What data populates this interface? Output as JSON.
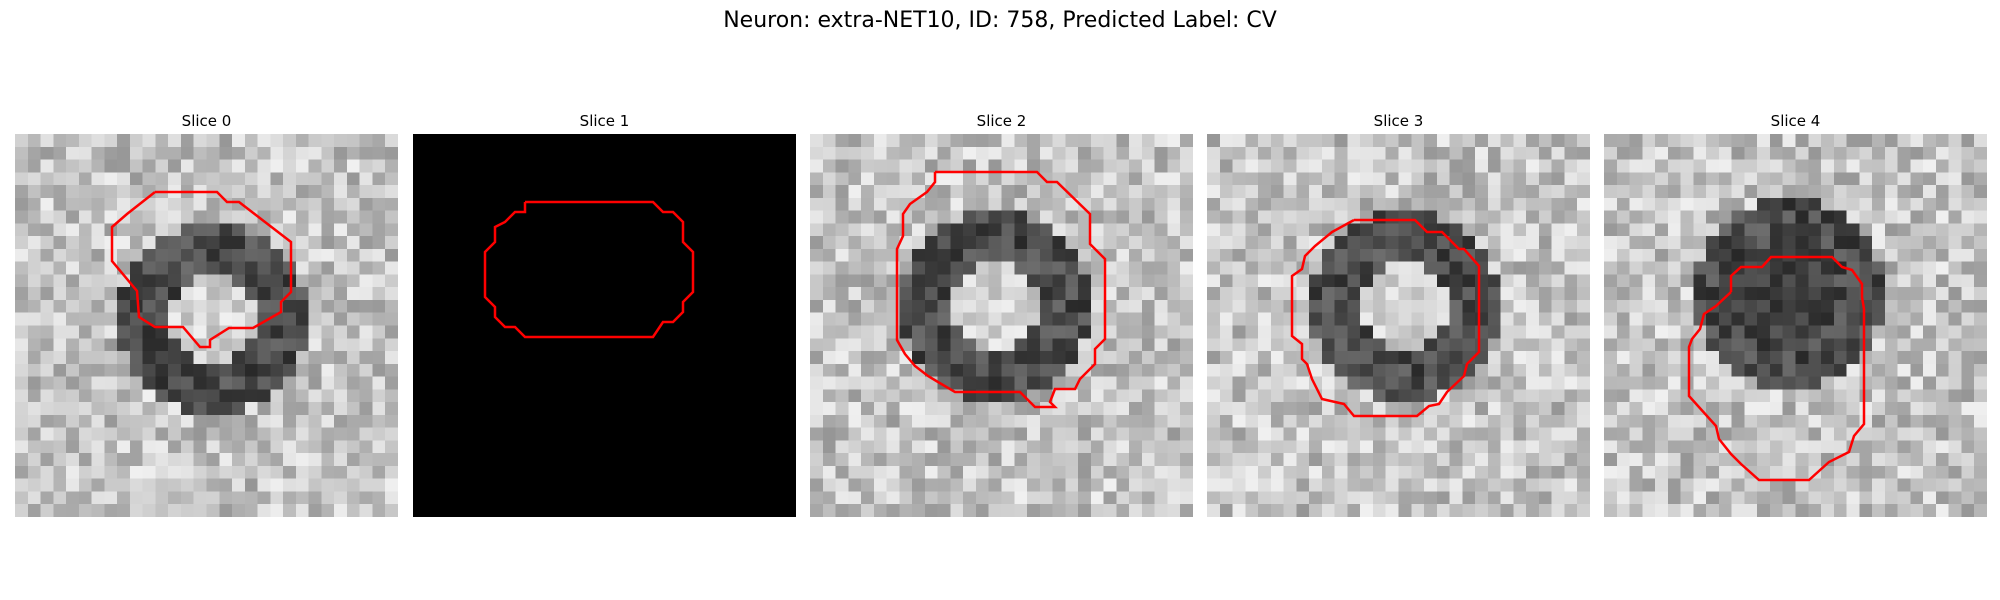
{
  "figure": {
    "title": "Neuron: extra-NET10, ID: 758, Predicted Label: CV"
  },
  "colors": {
    "background": "#ffffff",
    "contour": "#ff0000"
  },
  "slices": [
    {
      "title": "Slice 0",
      "content": "grayscale-patch",
      "seed": 11,
      "ring_dark": true
    },
    {
      "title": "Slice 1",
      "content": "blank-black",
      "seed": 0,
      "ring_dark": false
    },
    {
      "title": "Slice 2",
      "content": "grayscale-patch",
      "seed": 23,
      "ring_dark": true
    },
    {
      "title": "Slice 3",
      "content": "grayscale-patch",
      "seed": 37,
      "ring_dark": true
    },
    {
      "title": "Slice 4",
      "content": "grayscale-patch",
      "seed": 53,
      "ring_dark": true
    }
  ]
}
